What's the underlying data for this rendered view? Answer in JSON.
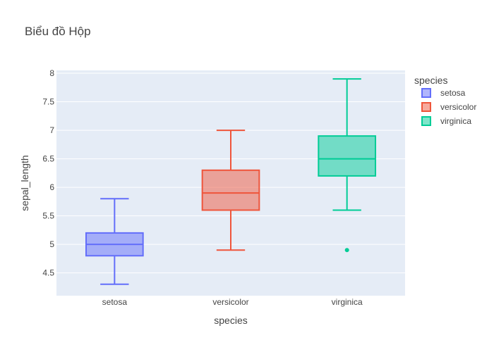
{
  "chart_data": {
    "type": "box",
    "title": "Biểu đồ Hộp",
    "xlabel": "species",
    "ylabel": "sepal_length",
    "categories": [
      "setosa",
      "versicolor",
      "virginica"
    ],
    "ylim": [
      4.1,
      8.05
    ],
    "yticks": [
      "4.5",
      "5",
      "5.5",
      "6",
      "6.5",
      "7",
      "7.5",
      "8"
    ],
    "grid": true,
    "legend": {
      "title": "species",
      "placement": "top-right",
      "entries": [
        "setosa",
        "versicolor",
        "virginica"
      ]
    },
    "series": [
      {
        "name": "setosa",
        "color": "#636efa",
        "min": 4.3,
        "q1": 4.8,
        "median": 5.0,
        "q3": 5.2,
        "max": 5.8,
        "outliers": []
      },
      {
        "name": "versicolor",
        "color": "#ef553b",
        "min": 4.9,
        "q1": 5.6,
        "median": 5.9,
        "q3": 6.3,
        "max": 7.0,
        "outliers": []
      },
      {
        "name": "virginica",
        "color": "#00cc96",
        "min": 5.6,
        "q1": 6.2,
        "median": 6.5,
        "q3": 6.9,
        "max": 7.9,
        "outliers": [
          4.9
        ]
      }
    ]
  }
}
